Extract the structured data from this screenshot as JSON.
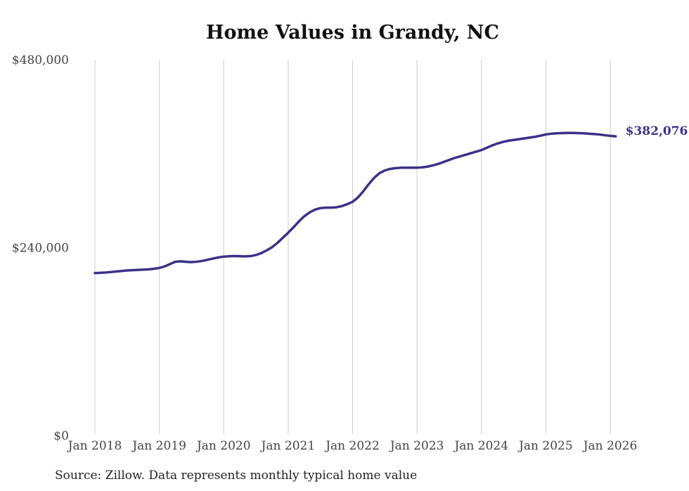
{
  "title": "Home Values in Grandy, NC",
  "source_note": "Source: Zillow. Data represents monthly typical home value",
  "colors": {
    "line": "#3a3288",
    "grid": "#cccccc",
    "title_text": "#111111",
    "axis_text": "#444444",
    "source_text": "#222222",
    "final_label": "#3a3288"
  },
  "chart_data": {
    "type": "line",
    "title": "Home Values in Grandy, NC",
    "xlabel": "",
    "ylabel": "",
    "grid": "vertical-only",
    "legend": "none",
    "ylim": [
      0,
      480000
    ],
    "yticks": [
      0,
      240000,
      480000
    ],
    "y_tick_labels": [
      "$0",
      "$240,000",
      "$480,000"
    ],
    "x_tick_labels": [
      "Jan 2018",
      "Jan 2019",
      "Jan 2020",
      "Jan 2021",
      "Jan 2022",
      "Jan 2023",
      "Jan 2024",
      "Jan 2025",
      "Jan 2026"
    ],
    "final_value": 382076,
    "final_value_label": "$382,076",
    "series": [
      {
        "name": "Typical home value (monthly)",
        "start_month": "2018-01",
        "end_month": "2026-02",
        "frequency": "monthly",
        "values": [
          207500,
          207800,
          208200,
          208800,
          209500,
          210200,
          210800,
          211200,
          211500,
          211800,
          212200,
          213000,
          214000,
          216000,
          219000,
          222000,
          222500,
          221800,
          221500,
          222000,
          223000,
          224500,
          226000,
          227500,
          228500,
          229000,
          229200,
          229000,
          228800,
          229200,
          230500,
          233000,
          236500,
          240500,
          246000,
          252500,
          259000,
          266000,
          273500,
          280000,
          285000,
          288500,
          290500,
          291000,
          291000,
          291500,
          293000,
          295500,
          298500,
          304000,
          312000,
          321000,
          329000,
          335000,
          338500,
          340500,
          341500,
          342000,
          342000,
          342000,
          342000,
          342500,
          343500,
          345000,
          347000,
          349500,
          352000,
          354500,
          356500,
          358500,
          360500,
          362500,
          364500,
          367500,
          370500,
          373000,
          375000,
          376500,
          377500,
          378500,
          379500,
          380500,
          381500,
          383000,
          384500,
          385500,
          386000,
          386300,
          386500,
          386500,
          386300,
          386000,
          385500,
          385000,
          384500,
          383500,
          382800,
          382076
        ]
      }
    ]
  }
}
